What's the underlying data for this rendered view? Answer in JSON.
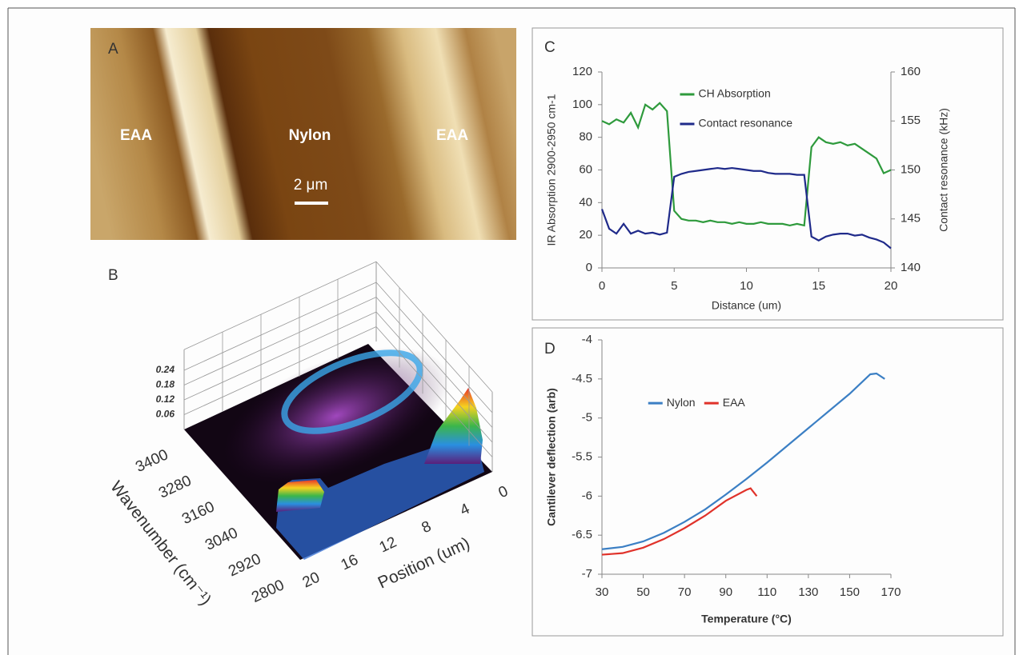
{
  "panel_a": {
    "label": "A",
    "regions": [
      "EAA",
      "Nylon",
      "EAA"
    ],
    "scale_bar": "2 μm"
  },
  "chart_data": [
    {
      "type": "surface",
      "panel_label": "B",
      "xlabel": "Position (um)",
      "ylabel": "Wavenumber (cm⁻¹)",
      "xlim": [
        0,
        20
      ],
      "xticks": [
        0,
        4,
        8,
        12,
        16,
        20
      ],
      "ylim": [
        2800,
        3400
      ],
      "yticks": [
        2800,
        2920,
        3040,
        3160,
        3280,
        3400
      ],
      "zlim": [
        0,
        0.24
      ],
      "zticks": [
        0.06,
        0.12,
        0.18,
        0.24
      ]
    },
    {
      "type": "line",
      "panel_label": "C",
      "xlabel": "Distance (um)",
      "ylabel": "IR Absorption 2900-2950 cm-1",
      "y2label": "Contact resonance (kHz)",
      "xlim": [
        0,
        20
      ],
      "xticks": [
        0,
        5,
        10,
        15,
        20
      ],
      "ylim": [
        0,
        120
      ],
      "yticks": [
        0,
        20,
        40,
        60,
        80,
        100,
        120
      ],
      "y2lim": [
        140,
        160
      ],
      "y2ticks": [
        140,
        145,
        150,
        155,
        160
      ],
      "grid": false,
      "legend": "upper center",
      "x": [
        0,
        0.5,
        1,
        1.5,
        2,
        2.5,
        3,
        3.5,
        4,
        4.5,
        5,
        5.5,
        6,
        6.5,
        7,
        7.5,
        8,
        8.5,
        9,
        9.5,
        10,
        10.5,
        11,
        11.5,
        12,
        12.5,
        13,
        13.5,
        14,
        14.5,
        15,
        15.5,
        16,
        16.5,
        17,
        17.5,
        18,
        18.5,
        19,
        19.5,
        20
      ],
      "series": [
        {
          "name": "CH Absorption",
          "color": "#2e9a3c",
          "values": [
            90,
            88,
            91,
            89,
            95,
            86,
            100,
            97,
            101,
            96,
            35,
            30,
            29,
            29,
            28,
            29,
            28,
            28,
            27,
            28,
            27,
            27,
            28,
            27,
            27,
            27,
            26,
            27,
            26,
            74,
            80,
            77,
            76,
            77,
            75,
            76,
            73,
            70,
            67,
            58,
            60
          ]
        },
        {
          "name": "Contact resonance",
          "color": "#1f2a8a",
          "axis": "y2",
          "values": [
            146,
            144,
            143.5,
            144.5,
            143.5,
            143.8,
            143.5,
            143.6,
            143.4,
            143.6,
            149.3,
            149.6,
            149.8,
            149.9,
            150,
            150.1,
            150.2,
            150.1,
            150.2,
            150.1,
            150,
            149.9,
            149.9,
            149.7,
            149.6,
            149.6,
            149.6,
            149.5,
            149.5,
            143.2,
            142.8,
            143.2,
            143.4,
            143.5,
            143.5,
            143.3,
            143.4,
            143.1,
            142.9,
            142.6,
            142
          ]
        }
      ]
    },
    {
      "type": "line",
      "panel_label": "D",
      "xlabel": "Temperature (°C)",
      "ylabel": "Cantilever deflection (arb)",
      "xlim": [
        30,
        170
      ],
      "xticks": [
        30,
        50,
        70,
        90,
        110,
        130,
        150,
        170
      ],
      "ylim": [
        -7,
        -4
      ],
      "yticks": [
        -7,
        -6.5,
        -6,
        -5.5,
        -5,
        -4.5,
        -4
      ],
      "grid": false,
      "legend": "center left",
      "bold_labels": true,
      "series": [
        {
          "name": "Nylon",
          "color": "#3b7fc4",
          "x": [
            30,
            40,
            50,
            60,
            70,
            80,
            90,
            100,
            110,
            120,
            130,
            140,
            150,
            160,
            163,
            167
          ],
          "values": [
            -6.68,
            -6.65,
            -6.58,
            -6.47,
            -6.33,
            -6.17,
            -5.98,
            -5.78,
            -5.57,
            -5.35,
            -5.13,
            -4.91,
            -4.69,
            -4.44,
            -4.43,
            -4.5
          ]
        },
        {
          "name": "EAA",
          "color": "#e0322a",
          "x": [
            30,
            40,
            50,
            60,
            70,
            80,
            90,
            100,
            102,
            105
          ],
          "values": [
            -6.75,
            -6.73,
            -6.66,
            -6.55,
            -6.41,
            -6.25,
            -6.06,
            -5.92,
            -5.9,
            -6.0
          ]
        }
      ]
    }
  ]
}
